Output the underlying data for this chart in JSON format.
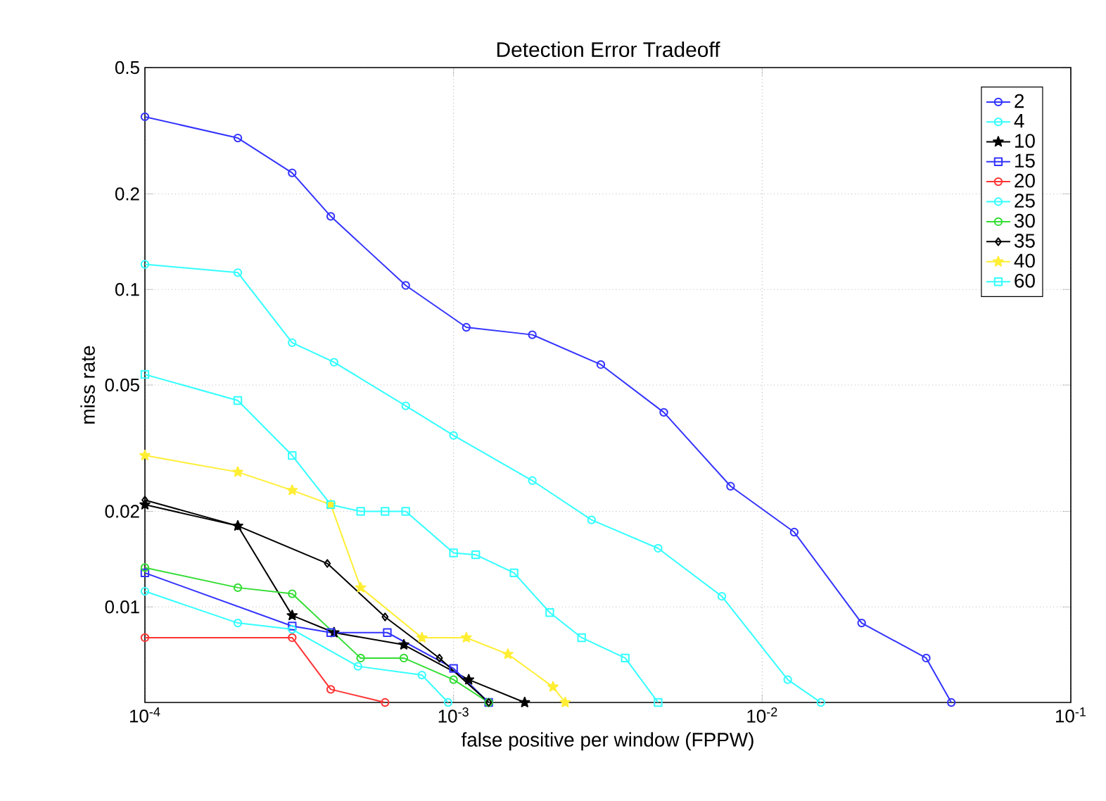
{
  "chart_data": {
    "type": "line",
    "title": "Detection Error Tradeoff",
    "xlabel": "false positive per window (FPPW)",
    "ylabel": "miss rate",
    "log": "xy",
    "grid": true,
    "legend": "top right",
    "xlim": [
      0.0001,
      0.1
    ],
    "ylim": [
      0.005,
      0.5
    ],
    "xticks": [
      {
        "value": 0.0001,
        "label": "10$^{-4}$"
      },
      {
        "value": 0.001,
        "label": "10$^{-3}$"
      },
      {
        "value": 0.01,
        "label": "10$^{-2}$"
      },
      {
        "value": 0.1,
        "label": "10$^{-1}$"
      }
    ],
    "yticks": [
      0.01,
      0.02,
      0.05,
      0.1,
      0.2,
      0.5
    ],
    "series": [
      {
        "name": "2",
        "color": "#3333ff",
        "marker": "circle",
        "x": [
          0.0001,
          0.0002,
          0.0003,
          0.0004,
          0.0007,
          0.0011,
          0.0018,
          0.003,
          0.0048,
          0.0079,
          0.0127,
          0.021,
          0.034,
          0.041
        ],
        "values": [
          0.35,
          0.3,
          0.233,
          0.17,
          0.103,
          0.076,
          0.072,
          0.058,
          0.041,
          0.024,
          0.0172,
          0.0089,
          0.0069,
          0.005
        ]
      },
      {
        "name": "4",
        "color": "#33ffff",
        "marker": "circle",
        "x": [
          0.0001,
          0.0002,
          0.0003,
          0.00041,
          0.0007,
          0.001,
          0.0018,
          0.0028,
          0.0046,
          0.0074,
          0.0121,
          0.0155
        ],
        "values": [
          0.12,
          0.113,
          0.068,
          0.059,
          0.043,
          0.0347,
          0.025,
          0.0188,
          0.0153,
          0.0108,
          0.0059,
          0.005
        ]
      },
      {
        "name": "10",
        "color": "#000000",
        "marker": "star",
        "x": [
          0.0001,
          0.0002,
          0.0003,
          0.00041,
          0.00069,
          0.00112,
          0.0017
        ],
        "values": [
          0.021,
          0.018,
          0.0094,
          0.0083,
          0.0076,
          0.0059,
          0.005
        ]
      },
      {
        "name": "15",
        "color": "#3333ff",
        "marker": "square",
        "x": [
          0.0001,
          0.0003,
          0.0004,
          0.00061,
          0.001,
          0.0013
        ],
        "values": [
          0.0128,
          0.0087,
          0.0083,
          0.0083,
          0.0064,
          0.005
        ]
      },
      {
        "name": "20",
        "color": "#ff3333",
        "marker": "circle",
        "x": [
          0.0001,
          0.0003,
          0.0004,
          0.0006
        ],
        "values": [
          0.008,
          0.008,
          0.0055,
          0.005
        ]
      },
      {
        "name": "25",
        "color": "#33ffff",
        "marker": "circle",
        "x": [
          0.0001,
          0.0002,
          0.0003,
          0.00049,
          0.00079,
          0.00096
        ],
        "values": [
          0.0112,
          0.0089,
          0.0085,
          0.0065,
          0.0061,
          0.005
        ]
      },
      {
        "name": "30",
        "color": "#33dd33",
        "marker": "circle",
        "x": [
          0.0001,
          0.0002,
          0.0003,
          0.0005,
          0.00069,
          0.001,
          0.0013
        ],
        "values": [
          0.0133,
          0.0115,
          0.011,
          0.0069,
          0.0069,
          0.0059,
          0.005
        ]
      },
      {
        "name": "35",
        "color": "#000000",
        "marker": "diamond",
        "x": [
          0.0001,
          0.0002,
          0.00039,
          0.0006,
          0.0009,
          0.0013
        ],
        "values": [
          0.0217,
          0.018,
          0.0137,
          0.0093,
          0.0069,
          0.005
        ]
      },
      {
        "name": "40",
        "color": "#ffee33",
        "marker": "star",
        "x": [
          0.0001,
          0.0002,
          0.0003,
          0.0004,
          0.0005,
          0.00079,
          0.0011,
          0.0015,
          0.0021,
          0.0023
        ],
        "values": [
          0.03,
          0.0266,
          0.0233,
          0.021,
          0.0115,
          0.008,
          0.008,
          0.0071,
          0.0056,
          0.005
        ]
      },
      {
        "name": "60",
        "color": "#33ffff",
        "marker": "square",
        "x": [
          0.0001,
          0.0002,
          0.0003,
          0.0004,
          0.0005,
          0.0006,
          0.0007,
          0.001,
          0.00118,
          0.00157,
          0.00205,
          0.0026,
          0.0036,
          0.0046
        ],
        "values": [
          0.054,
          0.0447,
          0.03,
          0.021,
          0.02,
          0.02,
          0.02,
          0.0148,
          0.0146,
          0.0128,
          0.0096,
          0.008,
          0.0069,
          0.005
        ]
      }
    ]
  }
}
